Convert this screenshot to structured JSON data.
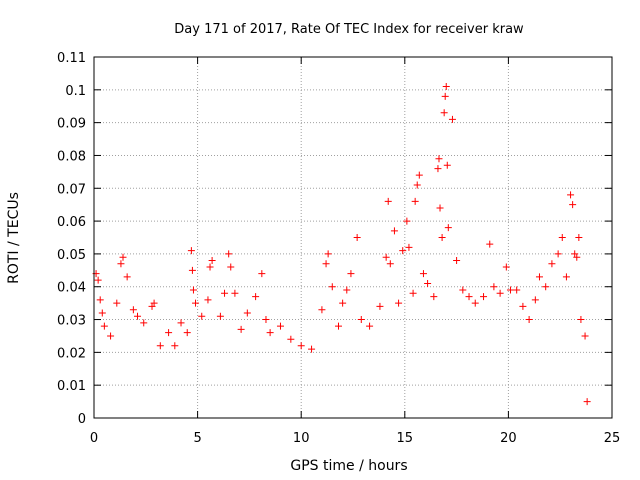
{
  "chart_data": {
    "type": "scatter",
    "title": "Day 171 of 2017, Rate Of TEC Index for receiver kraw",
    "xlabel": "GPS time / hours",
    "ylabel": "ROTI / TECUs",
    "xlim": [
      0,
      25
    ],
    "ylim": [
      0,
      0.11
    ],
    "x_ticks": [
      "0",
      "5",
      "10",
      "15",
      "20",
      "25"
    ],
    "y_ticks": [
      "0",
      "0.01",
      "0.02",
      "0.03",
      "0.04",
      "0.05",
      "0.06",
      "0.07",
      "0.08",
      "0.09",
      "0.1",
      "0.11"
    ],
    "grid": true,
    "marker": "+",
    "color": "#ff0000",
    "series": [
      {
        "points": [
          [
            0.1,
            0.044
          ],
          [
            0.2,
            0.042
          ],
          [
            0.3,
            0.036
          ],
          [
            0.4,
            0.032
          ],
          [
            0.5,
            0.028
          ],
          [
            0.8,
            0.025
          ],
          [
            1.1,
            0.035
          ],
          [
            1.3,
            0.047
          ],
          [
            1.4,
            0.049
          ],
          [
            1.6,
            0.043
          ],
          [
            1.9,
            0.033
          ],
          [
            2.1,
            0.031
          ],
          [
            2.4,
            0.029
          ],
          [
            2.8,
            0.034
          ],
          [
            2.9,
            0.035
          ],
          [
            3.2,
            0.022
          ],
          [
            3.6,
            0.026
          ],
          [
            3.9,
            0.022
          ],
          [
            4.2,
            0.029
          ],
          [
            4.5,
            0.026
          ],
          [
            4.7,
            0.051
          ],
          [
            4.75,
            0.045
          ],
          [
            4.8,
            0.039
          ],
          [
            4.9,
            0.035
          ],
          [
            5.2,
            0.031
          ],
          [
            5.5,
            0.036
          ],
          [
            5.6,
            0.046
          ],
          [
            5.7,
            0.048
          ],
          [
            6.1,
            0.031
          ],
          [
            6.3,
            0.038
          ],
          [
            6.5,
            0.05
          ],
          [
            6.6,
            0.046
          ],
          [
            6.8,
            0.038
          ],
          [
            7.1,
            0.027
          ],
          [
            7.4,
            0.032
          ],
          [
            7.8,
            0.037
          ],
          [
            8.1,
            0.044
          ],
          [
            8.3,
            0.03
          ],
          [
            8.5,
            0.026
          ],
          [
            9.0,
            0.028
          ],
          [
            9.5,
            0.024
          ],
          [
            10.0,
            0.022
          ],
          [
            10.5,
            0.021
          ],
          [
            11.0,
            0.033
          ],
          [
            11.2,
            0.047
          ],
          [
            11.3,
            0.05
          ],
          [
            11.5,
            0.04
          ],
          [
            11.8,
            0.028
          ],
          [
            12.0,
            0.035
          ],
          [
            12.2,
            0.039
          ],
          [
            12.4,
            0.044
          ],
          [
            12.7,
            0.055
          ],
          [
            12.9,
            0.03
          ],
          [
            13.3,
            0.028
          ],
          [
            13.8,
            0.034
          ],
          [
            14.1,
            0.049
          ],
          [
            14.2,
            0.066
          ],
          [
            14.3,
            0.047
          ],
          [
            14.5,
            0.057
          ],
          [
            14.7,
            0.035
          ],
          [
            14.9,
            0.051
          ],
          [
            15.1,
            0.06
          ],
          [
            15.2,
            0.052
          ],
          [
            15.4,
            0.038
          ],
          [
            15.5,
            0.066
          ],
          [
            15.6,
            0.071
          ],
          [
            15.7,
            0.074
          ],
          [
            15.9,
            0.044
          ],
          [
            16.1,
            0.041
          ],
          [
            16.4,
            0.037
          ],
          [
            16.6,
            0.076
          ],
          [
            16.65,
            0.079
          ],
          [
            16.7,
            0.064
          ],
          [
            16.8,
            0.055
          ],
          [
            16.9,
            0.093
          ],
          [
            16.95,
            0.098
          ],
          [
            17.0,
            0.101
          ],
          [
            17.05,
            0.077
          ],
          [
            17.1,
            0.058
          ],
          [
            17.3,
            0.091
          ],
          [
            17.5,
            0.048
          ],
          [
            17.8,
            0.039
          ],
          [
            18.1,
            0.037
          ],
          [
            18.4,
            0.035
          ],
          [
            18.8,
            0.037
          ],
          [
            19.1,
            0.053
          ],
          [
            19.3,
            0.04
          ],
          [
            19.6,
            0.038
          ],
          [
            19.9,
            0.046
          ],
          [
            20.1,
            0.039
          ],
          [
            20.4,
            0.039
          ],
          [
            20.7,
            0.034
          ],
          [
            21.0,
            0.03
          ],
          [
            21.3,
            0.036
          ],
          [
            21.5,
            0.043
          ],
          [
            21.8,
            0.04
          ],
          [
            22.1,
            0.047
          ],
          [
            22.4,
            0.05
          ],
          [
            22.6,
            0.055
          ],
          [
            22.8,
            0.043
          ],
          [
            23.0,
            0.068
          ],
          [
            23.1,
            0.065
          ],
          [
            23.2,
            0.05
          ],
          [
            23.3,
            0.049
          ],
          [
            23.4,
            0.055
          ],
          [
            23.5,
            0.03
          ],
          [
            23.7,
            0.025
          ],
          [
            23.8,
            0.005
          ]
        ]
      }
    ]
  }
}
